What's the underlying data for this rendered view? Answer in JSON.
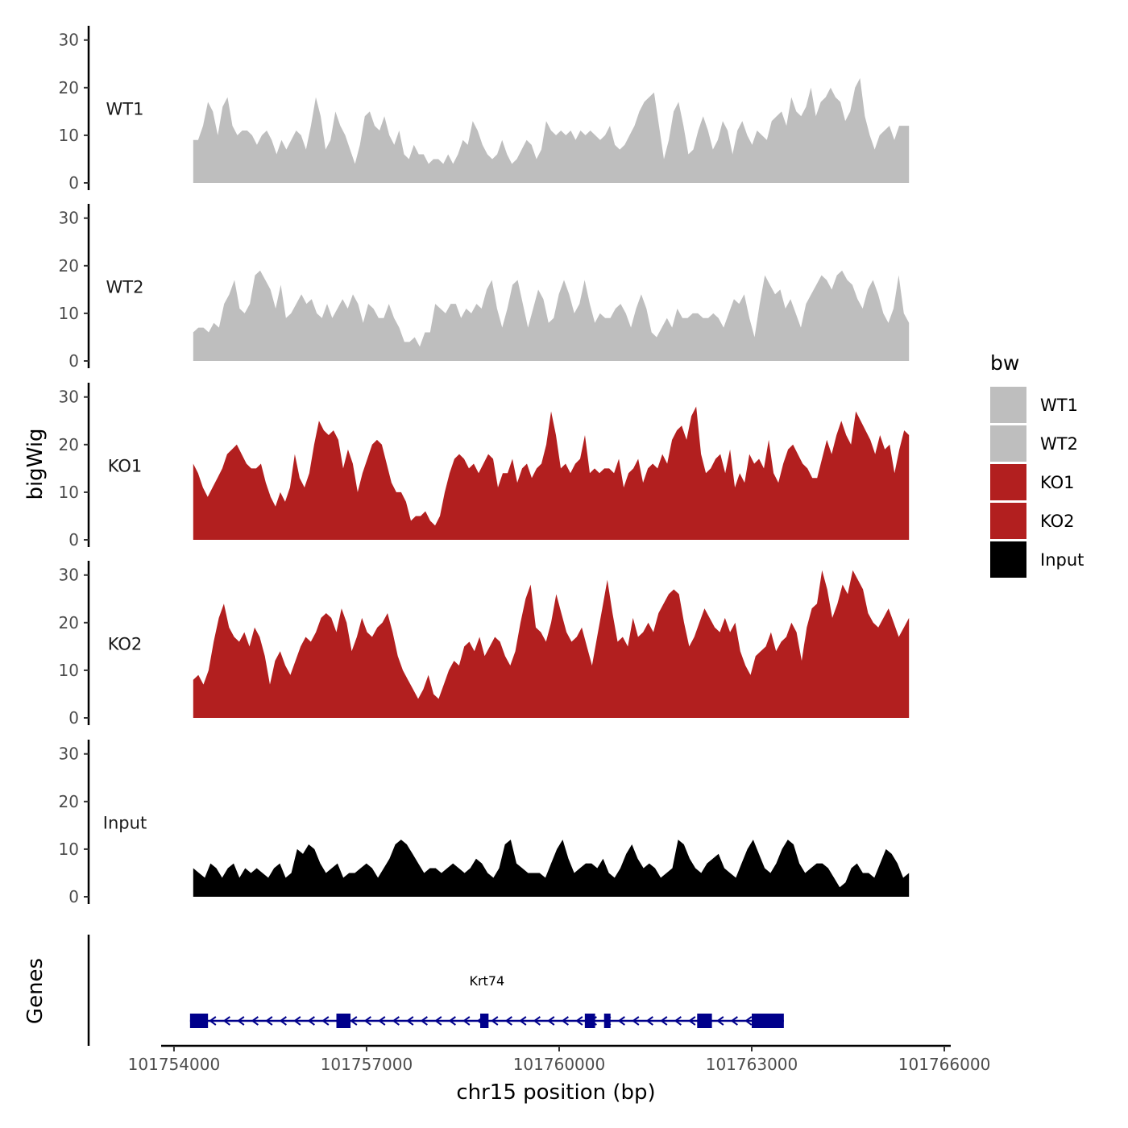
{
  "chart_data": {
    "type": "area",
    "chromosome": "chr15",
    "xlabel": "chr15 position (bp)",
    "ylabel": "bigWig",
    "genes_track_label": "Genes",
    "xlim": [
      101753800,
      101766100
    ],
    "x_ticks": [
      101754000,
      101757000,
      101760000,
      101763000,
      101766000
    ],
    "x_tick_labels": [
      "101754000",
      "101757000",
      "101760000",
      "101763000",
      "101766000"
    ],
    "ylim": [
      0,
      33
    ],
    "y_ticks": [
      0,
      10,
      20,
      30
    ],
    "y_tick_labels": [
      "0",
      "10",
      "20",
      "30"
    ],
    "signal_start": 101754300,
    "signal_end": 101765450,
    "legend": {
      "title": "bw",
      "entries": [
        {
          "label": "WT1",
          "color": "#bebebe"
        },
        {
          "label": "WT2",
          "color": "#bebebe"
        },
        {
          "label": "KO1",
          "color": "#b21f1f"
        },
        {
          "label": "KO2",
          "color": "#b21f1f"
        },
        {
          "label": "Input",
          "color": "#000000"
        }
      ]
    },
    "series": [
      {
        "name": "WT1",
        "color": "#bebebe",
        "values": [
          9,
          9,
          12,
          17,
          15,
          10,
          16,
          18,
          12,
          10,
          11,
          11,
          10,
          8,
          10,
          11,
          9,
          6,
          9,
          7,
          9,
          11,
          10,
          7,
          12,
          18,
          14,
          7,
          9,
          15,
          12,
          10,
          7,
          4,
          8,
          14,
          15,
          12,
          11,
          14,
          10,
          8,
          11,
          6,
          5,
          8,
          6,
          6,
          4,
          5,
          5,
          4,
          6,
          4,
          6,
          9,
          8,
          13,
          11,
          8,
          6,
          5,
          6,
          9,
          6,
          4,
          5,
          7,
          9,
          8,
          5,
          7,
          13,
          11,
          10,
          11,
          10,
          11,
          9,
          11,
          10,
          11,
          10,
          9,
          10,
          12,
          8,
          7,
          8,
          10,
          12,
          15,
          17,
          18,
          19,
          12,
          5,
          9,
          15,
          17,
          12,
          6,
          7,
          11,
          14,
          11,
          7,
          9,
          13,
          11,
          6,
          11,
          13,
          10,
          8,
          11,
          10,
          9,
          13,
          14,
          15,
          12,
          18,
          15,
          14,
          16,
          20,
          14,
          17,
          18,
          20,
          18,
          17,
          13,
          15,
          20,
          22,
          14,
          10,
          7,
          10,
          11,
          12,
          9,
          12,
          12,
          12
        ]
      },
      {
        "name": "WT2",
        "color": "#bebebe",
        "values": [
          6,
          7,
          7,
          6,
          8,
          7,
          12,
          14,
          17,
          11,
          10,
          12,
          18,
          19,
          17,
          15,
          11,
          16,
          9,
          10,
          12,
          14,
          12,
          13,
          10,
          9,
          12,
          9,
          11,
          13,
          11,
          14,
          12,
          8,
          12,
          11,
          9,
          9,
          12,
          9,
          7,
          4,
          4,
          5,
          3,
          6,
          6,
          12,
          11,
          10,
          12,
          12,
          9,
          11,
          10,
          12,
          11,
          15,
          17,
          11,
          7,
          11,
          16,
          17,
          12,
          7,
          11,
          15,
          13,
          8,
          9,
          14,
          17,
          14,
          10,
          12,
          17,
          12,
          8,
          10,
          9,
          9,
          11,
          12,
          10,
          7,
          11,
          14,
          11,
          6,
          5,
          7,
          9,
          7,
          11,
          9,
          9,
          10,
          10,
          9,
          9,
          10,
          9,
          7,
          10,
          13,
          12,
          14,
          9,
          5,
          12,
          18,
          16,
          14,
          15,
          11,
          13,
          10,
          7,
          12,
          14,
          16,
          18,
          17,
          15,
          18,
          19,
          17,
          16,
          13,
          11,
          15,
          17,
          14,
          10,
          8,
          11,
          18,
          10,
          8
        ]
      },
      {
        "name": "KO1",
        "color": "#b21f1f",
        "values": [
          16,
          14,
          11,
          9,
          11,
          13,
          15,
          18,
          19,
          20,
          18,
          16,
          15,
          15,
          16,
          12,
          9,
          7,
          10,
          8,
          11,
          18,
          13,
          11,
          14,
          20,
          25,
          23,
          22,
          23,
          21,
          15,
          19,
          16,
          10,
          14,
          17,
          20,
          21,
          20,
          16,
          12,
          10,
          10,
          8,
          4,
          5,
          5,
          6,
          4,
          3,
          5,
          10,
          14,
          17,
          18,
          17,
          15,
          16,
          14,
          16,
          18,
          17,
          11,
          14,
          14,
          17,
          12,
          15,
          16,
          13,
          15,
          16,
          20,
          27,
          22,
          15,
          16,
          14,
          16,
          17,
          22,
          14,
          15,
          14,
          15,
          15,
          14,
          17,
          11,
          14,
          15,
          17,
          12,
          15,
          16,
          15,
          18,
          16,
          21,
          23,
          24,
          21,
          26,
          28,
          18,
          14,
          15,
          17,
          18,
          14,
          19,
          11,
          14,
          12,
          18,
          16,
          17,
          15,
          21,
          14,
          12,
          16,
          19,
          20,
          18,
          16,
          15,
          13,
          13,
          17,
          21,
          18,
          22,
          25,
          22,
          20,
          27,
          25,
          23,
          21,
          18,
          22,
          19,
          20,
          14,
          19,
          23,
          22
        ]
      },
      {
        "name": "KO2",
        "color": "#b21f1f",
        "values": [
          8,
          9,
          7,
          10,
          16,
          21,
          24,
          19,
          17,
          16,
          18,
          15,
          19,
          17,
          13,
          7,
          12,
          14,
          11,
          9,
          12,
          15,
          17,
          16,
          18,
          21,
          22,
          21,
          18,
          23,
          20,
          14,
          17,
          21,
          18,
          17,
          19,
          20,
          22,
          18,
          13,
          10,
          8,
          6,
          4,
          6,
          9,
          5,
          4,
          7,
          10,
          12,
          11,
          15,
          16,
          14,
          17,
          13,
          15,
          17,
          16,
          13,
          11,
          14,
          20,
          25,
          28,
          19,
          18,
          16,
          20,
          26,
          22,
          18,
          16,
          17,
          19,
          15,
          11,
          17,
          23,
          29,
          22,
          16,
          17,
          15,
          21,
          17,
          18,
          20,
          18,
          22,
          24,
          26,
          27,
          26,
          20,
          15,
          17,
          20,
          23,
          21,
          19,
          18,
          21,
          18,
          20,
          14,
          11,
          9,
          13,
          14,
          15,
          18,
          14,
          16,
          17,
          20,
          18,
          12,
          19,
          23,
          24,
          31,
          27,
          21,
          24,
          28,
          26,
          31,
          29,
          27,
          22,
          20,
          19,
          21,
          23,
          20,
          17,
          19,
          21
        ]
      },
      {
        "name": "Input",
        "color": "#000000",
        "values": [
          6,
          5,
          4,
          7,
          6,
          4,
          6,
          7,
          4,
          6,
          5,
          6,
          5,
          4,
          6,
          7,
          4,
          5,
          10,
          9,
          11,
          10,
          7,
          5,
          6,
          7,
          4,
          5,
          5,
          6,
          7,
          6,
          4,
          6,
          8,
          11,
          12,
          11,
          9,
          7,
          5,
          6,
          6,
          5,
          6,
          7,
          6,
          5,
          6,
          8,
          7,
          5,
          4,
          6,
          11,
          12,
          7,
          6,
          5,
          5,
          5,
          4,
          7,
          10,
          12,
          8,
          5,
          6,
          7,
          7,
          6,
          8,
          5,
          4,
          6,
          9,
          11,
          8,
          6,
          7,
          6,
          4,
          5,
          6,
          12,
          11,
          8,
          6,
          5,
          7,
          8,
          9,
          6,
          5,
          4,
          7,
          10,
          12,
          9,
          6,
          5,
          7,
          10,
          12,
          11,
          7,
          5,
          6,
          7,
          7,
          6,
          4,
          2,
          3,
          6,
          7,
          5,
          5,
          4,
          7,
          10,
          9,
          7,
          4,
          5
        ]
      }
    ],
    "genes": [
      {
        "name": "Krt74",
        "strand": "-",
        "color": "#00008b",
        "start": 101754250,
        "end": 101763500,
        "exons": [
          [
            101754250,
            101754530
          ],
          [
            101756530,
            101756750
          ],
          [
            101758770,
            101758900
          ],
          [
            101760400,
            101760560
          ],
          [
            101760700,
            101760800
          ],
          [
            101762150,
            101762380
          ],
          [
            101763000,
            101763500
          ]
        ]
      }
    ]
  }
}
